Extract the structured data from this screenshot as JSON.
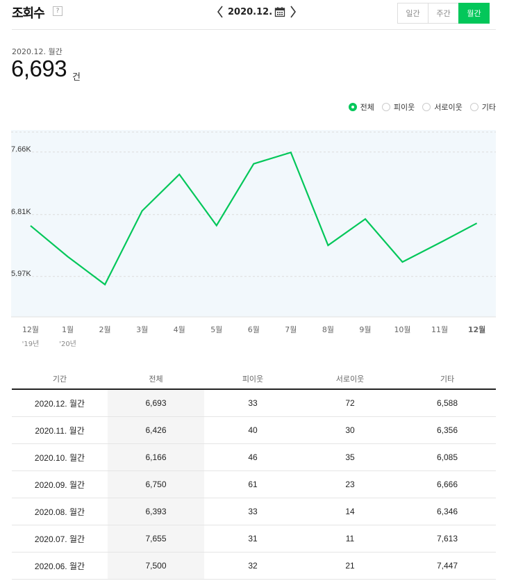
{
  "header": {
    "title": "조회수",
    "help_label": "?",
    "nav_date": "2020.12.",
    "period_tabs": [
      {
        "label": "일간",
        "active": false
      },
      {
        "label": "주간",
        "active": false
      },
      {
        "label": "월간",
        "active": true
      }
    ]
  },
  "summary": {
    "period": "2020.12. 월간",
    "total": "6,693",
    "unit": "건"
  },
  "legend": [
    {
      "label": "전체",
      "selected": true
    },
    {
      "label": "피이웃",
      "selected": false
    },
    {
      "label": "서로이웃",
      "selected": false
    },
    {
      "label": "기타",
      "selected": false
    }
  ],
  "colors": {
    "accent": "#03c75a",
    "chart_bg": "#f2f8fc"
  },
  "chart_data": {
    "type": "line",
    "categories": [
      "12월",
      "1월",
      "2월",
      "3월",
      "4월",
      "5월",
      "6월",
      "7월",
      "8월",
      "9월",
      "10월",
      "11월",
      "12월"
    ],
    "year_labels": [
      {
        "index": 0,
        "label": "'19년"
      },
      {
        "index": 1,
        "label": "'20년"
      }
    ],
    "series": [
      {
        "values": [
          6659,
          6240,
          5860,
          6860,
          7357,
          6662,
          7500,
          7655,
          6393,
          6750,
          6166,
          6426,
          6693
        ]
      }
    ],
    "y_ticks": [
      {
        "value": 7660,
        "label": "7.66K"
      },
      {
        "value": 6810,
        "label": "6.81K"
      },
      {
        "value": 5970,
        "label": "5.97K"
      }
    ],
    "ylim": [
      5420,
      7960
    ],
    "grid": true
  },
  "table": {
    "headers": [
      "기간",
      "전체",
      "피이웃",
      "서로이웃",
      "기타"
    ],
    "rows": [
      [
        "2020.12. 월간",
        "6,693",
        "33",
        "72",
        "6,588"
      ],
      [
        "2020.11. 월간",
        "6,426",
        "40",
        "30",
        "6,356"
      ],
      [
        "2020.10. 월간",
        "6,166",
        "46",
        "35",
        "6,085"
      ],
      [
        "2020.09. 월간",
        "6,750",
        "61",
        "23",
        "6,666"
      ],
      [
        "2020.08. 월간",
        "6,393",
        "33",
        "14",
        "6,346"
      ],
      [
        "2020.07. 월간",
        "7,655",
        "31",
        "11",
        "7,613"
      ],
      [
        "2020.06. 월간",
        "7,500",
        "32",
        "21",
        "7,447"
      ]
    ]
  }
}
